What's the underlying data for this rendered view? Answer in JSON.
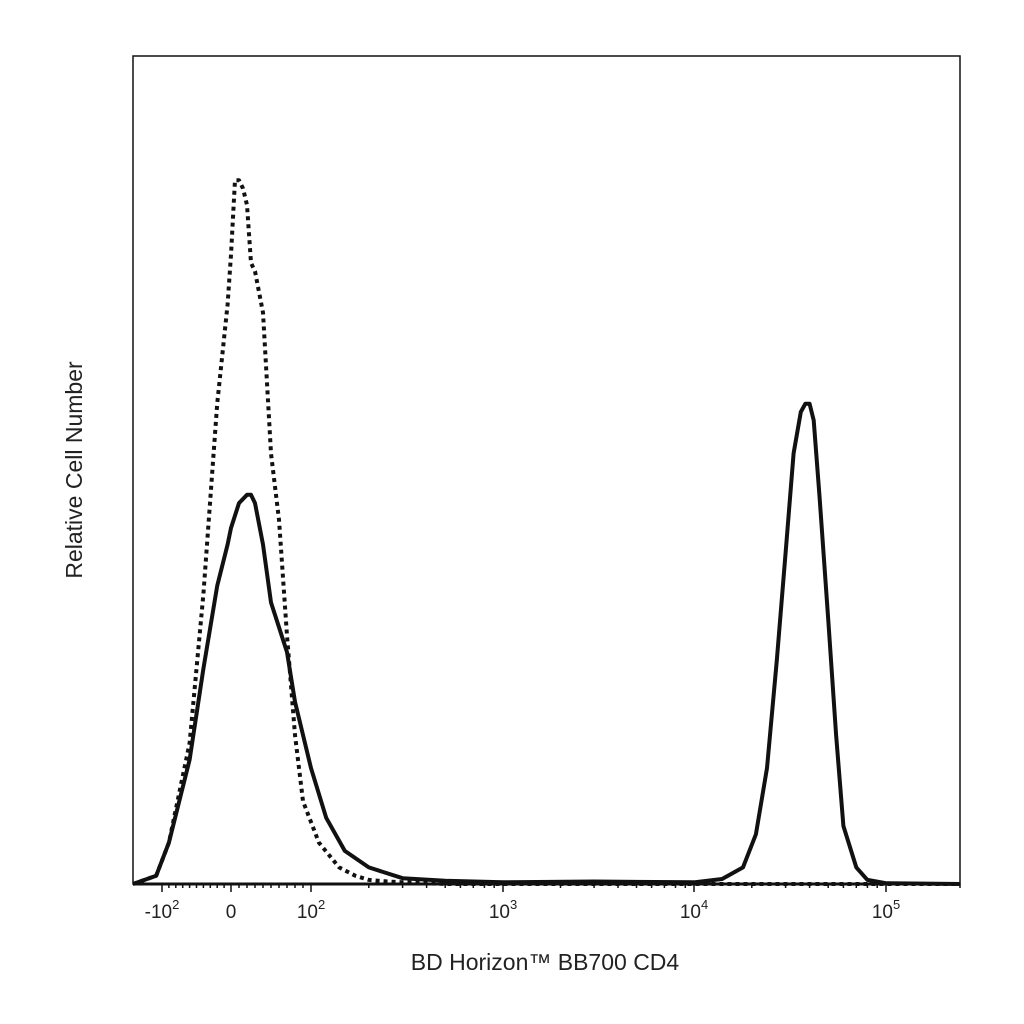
{
  "chart_data": {
    "type": "line",
    "title": "",
    "xlabel": "BD Horizon™ BB700 CD4",
    "ylabel": "Relative Cell Number",
    "x_scale": "biexponential",
    "xlim": [
      -200,
      200000
    ],
    "ylim": [
      0,
      1
    ],
    "grid": false,
    "legend": "none",
    "x_ticks": [
      {
        "value": -100,
        "base": "-10",
        "exp": "2"
      },
      {
        "value": 0,
        "base": "0",
        "exp": ""
      },
      {
        "value": 100,
        "base": "10",
        "exp": "2"
      },
      {
        "value": 1000,
        "base": "10",
        "exp": "3"
      },
      {
        "value": 10000,
        "base": "10",
        "exp": "4"
      },
      {
        "value": 100000,
        "base": "10",
        "exp": "5"
      }
    ],
    "series": [
      {
        "style": "dotted",
        "color": "#111111",
        "x": [
          -200,
          -120,
          -90,
          -60,
          -40,
          -20,
          -5,
          0,
          5,
          10,
          15,
          20,
          25,
          30,
          40,
          50,
          60,
          70,
          80,
          90,
          110,
          140,
          170,
          200,
          250,
          300,
          500,
          1000,
          10000,
          100000,
          200000
        ],
        "y": [
          0.0,
          0.01,
          0.05,
          0.17,
          0.35,
          0.58,
          0.7,
          0.76,
          0.85,
          0.85,
          0.84,
          0.82,
          0.75,
          0.74,
          0.69,
          0.52,
          0.44,
          0.3,
          0.18,
          0.1,
          0.05,
          0.02,
          0.01,
          0.005,
          0.003,
          0.002,
          0.0,
          0.0,
          0.0,
          0.0,
          0.0
        ]
      },
      {
        "style": "solid",
        "color": "#111111",
        "x": [
          -200,
          -120,
          -90,
          -60,
          -40,
          -20,
          -5,
          0,
          10,
          20,
          25,
          30,
          40,
          50,
          60,
          70,
          80,
          100,
          120,
          150,
          200,
          300,
          500,
          1000,
          3000,
          10000,
          14000,
          18000,
          21000,
          24000,
          27000,
          30000,
          33000,
          36000,
          38000,
          40000,
          42000,
          45000,
          50000,
          55000,
          60000,
          70000,
          80000,
          100000,
          200000
        ],
        "y": [
          0.0,
          0.01,
          0.05,
          0.15,
          0.26,
          0.36,
          0.41,
          0.43,
          0.46,
          0.47,
          0.47,
          0.46,
          0.41,
          0.34,
          0.31,
          0.28,
          0.22,
          0.14,
          0.08,
          0.04,
          0.02,
          0.007,
          0.004,
          0.002,
          0.003,
          0.002,
          0.006,
          0.02,
          0.06,
          0.14,
          0.27,
          0.4,
          0.52,
          0.57,
          0.58,
          0.58,
          0.56,
          0.47,
          0.32,
          0.18,
          0.07,
          0.02,
          0.005,
          0.001,
          0.0
        ]
      }
    ]
  }
}
